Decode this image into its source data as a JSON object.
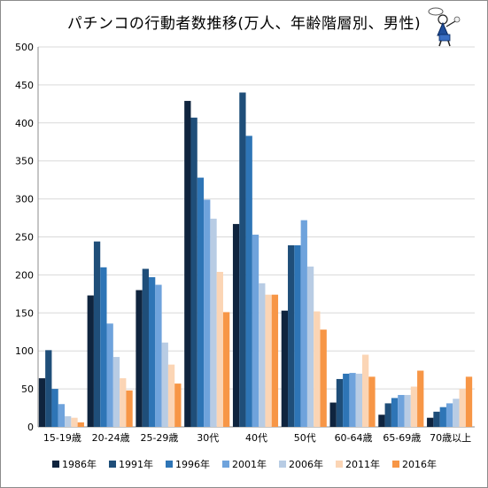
{
  "chart_data": {
    "type": "bar",
    "title": "パチンコの行動者数推移(万人、年齢階層別、男性)",
    "xlabel": "",
    "ylabel": "",
    "ylim": [
      0,
      500
    ],
    "yticks": [
      0,
      50,
      100,
      150,
      200,
      250,
      300,
      350,
      400,
      450,
      500
    ],
    "grid": true,
    "legend_position": "bottom",
    "categories": [
      "15-19歳",
      "20-24歳",
      "25-29歳",
      "30代",
      "40代",
      "50代",
      "60-64歳",
      "65-69歳",
      "70歳以上"
    ],
    "series": [
      {
        "name": "1986年",
        "color": "#0f243e",
        "values": [
          64,
          173,
          180,
          429,
          267,
          153,
          32,
          16,
          12
        ]
      },
      {
        "name": "1991年",
        "color": "#1f4e79",
        "values": [
          101,
          244,
          208,
          407,
          440,
          239,
          63,
          31,
          20
        ]
      },
      {
        "name": "1996年",
        "color": "#2e75b6",
        "values": [
          50,
          210,
          197,
          328,
          383,
          239,
          70,
          38,
          26
        ]
      },
      {
        "name": "2001年",
        "color": "#6fa3dc",
        "values": [
          30,
          136,
          187,
          299,
          253,
          272,
          71,
          42,
          31
        ]
      },
      {
        "name": "2006年",
        "color": "#b8cce4",
        "values": [
          14,
          92,
          111,
          274,
          189,
          211,
          70,
          42,
          37
        ]
      },
      {
        "name": "2011年",
        "color": "#fbd5b5",
        "values": [
          12,
          64,
          82,
          204,
          174,
          152,
          95,
          53,
          50
        ]
      },
      {
        "name": "2016年",
        "color": "#f79646",
        "values": [
          6,
          48,
          57,
          151,
          174,
          128,
          66,
          74,
          66
        ]
      }
    ]
  }
}
